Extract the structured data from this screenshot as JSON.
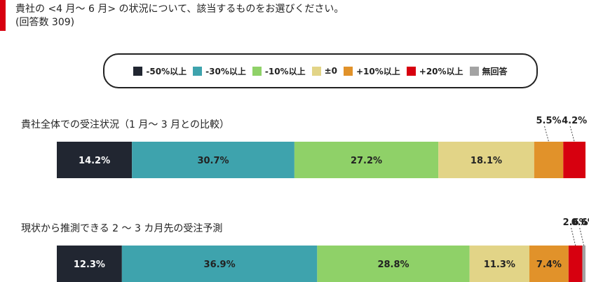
{
  "question": {
    "title": "貴社の <4 月～ 6 月> の状況について、該当するものをお選びください。",
    "note": "(回答数 309)"
  },
  "legend": [
    {
      "label": "-50%以上",
      "color": "#212631"
    },
    {
      "label": "-30%以上",
      "color": "#3ea3ad"
    },
    {
      "label": "-10%以上",
      "color": "#8fd168"
    },
    {
      "label": "±0",
      "color": "#e2d487"
    },
    {
      "label": "+10%以上",
      "color": "#e1922a"
    },
    {
      "label": "+20%以上",
      "color": "#d7000f"
    },
    {
      "label": "無回答",
      "color": "#a3a3a3"
    }
  ],
  "chart_data": [
    {
      "type": "bar",
      "stacked": "horizontal-100%",
      "title": "貴社全体での受注状況（1 月～ 3 月との比較）",
      "categories": [
        "-50%以上",
        "-30%以上",
        "-10%以上",
        "±0",
        "+10%以上",
        "+20%以上",
        "無回答"
      ],
      "values": [
        14.2,
        30.7,
        27.2,
        18.1,
        5.5,
        4.2,
        0
      ],
      "labels": [
        "14.2%",
        "30.7%",
        "27.2%",
        "18.1%",
        "5.5%",
        "4.2%",
        ""
      ]
    },
    {
      "type": "bar",
      "stacked": "horizontal-100%",
      "title": "現状から推測できる 2 ～ 3 カ月先の受注予測",
      "categories": [
        "-50%以上",
        "-30%以上",
        "-10%以上",
        "±0",
        "+10%以上",
        "+20%以上",
        "無回答"
      ],
      "values": [
        12.3,
        36.9,
        28.8,
        11.3,
        7.4,
        2.6,
        0.6
      ],
      "labels": [
        "12.3%",
        "36.9%",
        "28.8%",
        "11.3%",
        "7.4%",
        "2.6%",
        "0.6%"
      ]
    }
  ]
}
